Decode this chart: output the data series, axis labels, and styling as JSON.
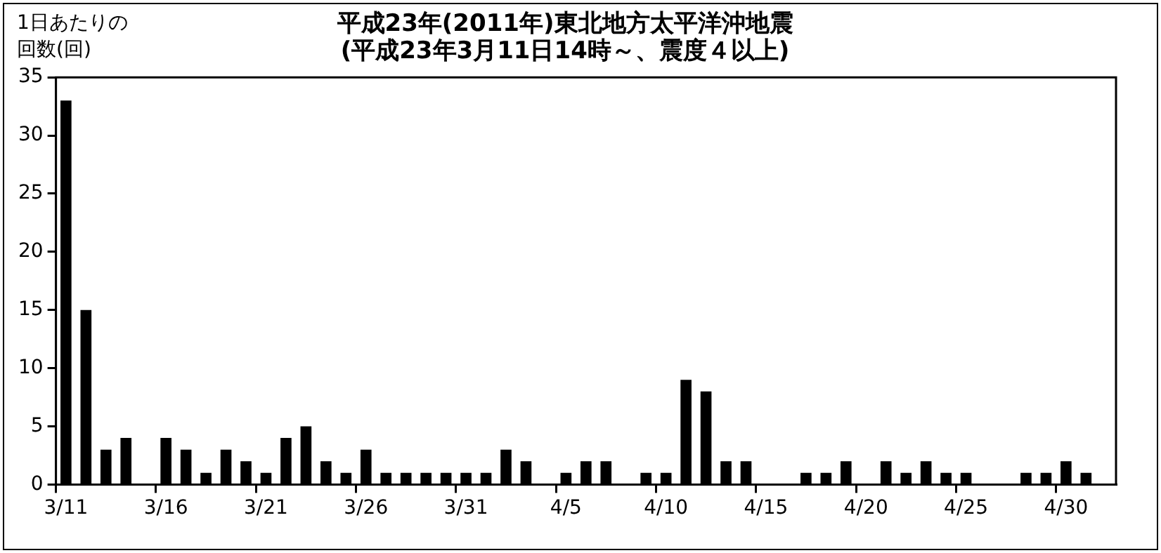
{
  "chart_data": {
    "type": "bar",
    "title": [
      "平成23年(2011年)東北地方太平洋沖地震",
      "(平成23年3月11日14時～、震度４以上)"
    ],
    "ylabel": [
      "1日あたりの",
      "回数(回)"
    ],
    "categories": [
      "3/11",
      null,
      null,
      null,
      null,
      "3/16",
      null,
      null,
      null,
      null,
      "3/21",
      null,
      null,
      null,
      null,
      "3/26",
      null,
      null,
      null,
      null,
      "3/31",
      null,
      null,
      null,
      null,
      "4/5",
      null,
      null,
      null,
      null,
      "4/10",
      null,
      null,
      null,
      null,
      "4/15",
      null,
      null,
      null,
      null,
      "4/20",
      null,
      null,
      null,
      null,
      "4/25",
      null,
      null,
      null,
      null,
      "4/30",
      null,
      null
    ],
    "values": [
      33,
      15,
      3,
      4,
      0,
      4,
      3,
      1,
      3,
      2,
      1,
      4,
      5,
      2,
      1,
      3,
      1,
      1,
      1,
      1,
      1,
      1,
      3,
      2,
      0,
      1,
      2,
      2,
      0,
      1,
      1,
      9,
      8,
      2,
      2,
      0,
      0,
      1,
      1,
      2,
      0,
      2,
      1,
      2,
      1,
      1,
      0,
      0,
      1,
      1,
      2,
      1,
      0
    ],
    "color": "#000000",
    "ylim": [
      0,
      35
    ],
    "yticks": [
      0,
      5,
      10,
      15,
      20,
      25,
      30,
      35
    ],
    "grid": false,
    "legend": false
  }
}
